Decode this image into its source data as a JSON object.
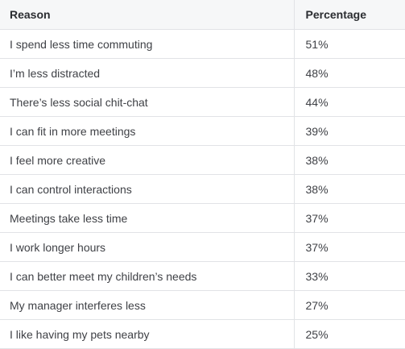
{
  "table": {
    "headers": [
      "Reason",
      "Percentage"
    ],
    "rows": [
      {
        "reason": "I spend less time commuting",
        "percentage": "51%"
      },
      {
        "reason": "I’m less distracted",
        "percentage": "48%"
      },
      {
        "reason": "There’s less social chit-chat",
        "percentage": "44%"
      },
      {
        "reason": "I can fit in more meetings",
        "percentage": "39%"
      },
      {
        "reason": "I feel more creative",
        "percentage": "38%"
      },
      {
        "reason": "I can control interactions",
        "percentage": "38%"
      },
      {
        "reason": "Meetings take less time",
        "percentage": "37%"
      },
      {
        "reason": "I work longer hours",
        "percentage": "37%"
      },
      {
        "reason": "I can better meet my children’s needs",
        "percentage": "33%"
      },
      {
        "reason": "My manager interferes less",
        "percentage": "27%"
      },
      {
        "reason": "I like having my pets nearby",
        "percentage": "25%"
      }
    ]
  }
}
